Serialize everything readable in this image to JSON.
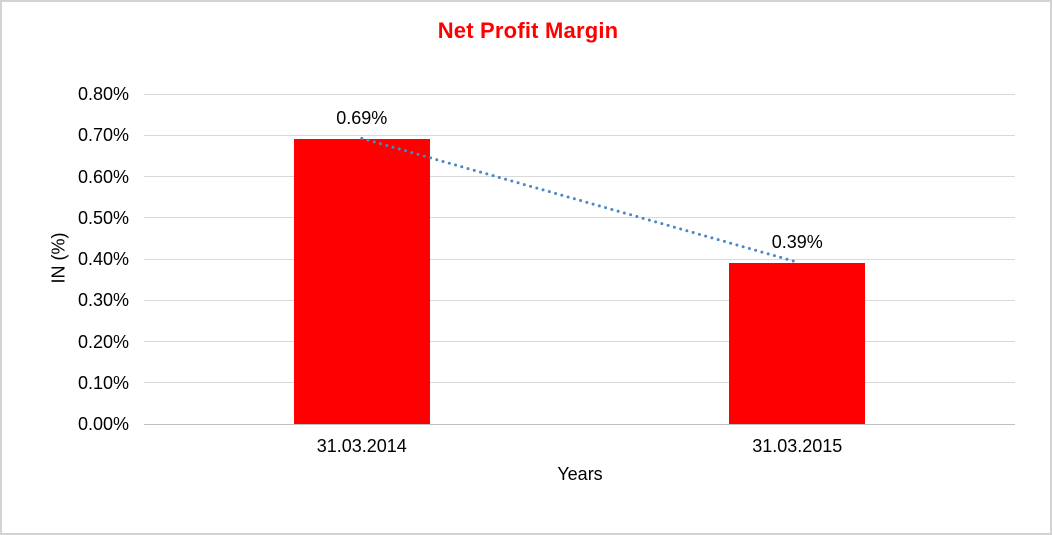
{
  "chart_data": {
    "type": "bar",
    "title": "Net Profit Margin",
    "xlabel": "Years",
    "ylabel": "IN (%)",
    "categories": [
      "31.03.2014",
      "31.03.2015"
    ],
    "values": [
      0.69,
      0.39
    ],
    "data_labels": [
      "0.69%",
      "0.39%"
    ],
    "ylim": [
      0,
      0.8
    ],
    "ytick_step": 0.1,
    "ytick_labels": [
      "0.00%",
      "0.10%",
      "0.20%",
      "0.30%",
      "0.40%",
      "0.50%",
      "0.60%",
      "0.70%",
      "0.80%"
    ],
    "grid": true,
    "legend": "none",
    "trendline": {
      "style": "dotted",
      "connects": [
        "top of 31.03.2014 bar",
        "top of 31.03.2015 bar"
      ],
      "from_value": 0.69,
      "to_value": 0.39
    }
  },
  "colors": {
    "bar": "#ff0000",
    "title": "#ff0000",
    "trendline": "#4a86c8",
    "gridline": "#d9d9d9",
    "axis_line": "#bfbfbf",
    "text": "#000000",
    "border": "#d3d3d3"
  }
}
